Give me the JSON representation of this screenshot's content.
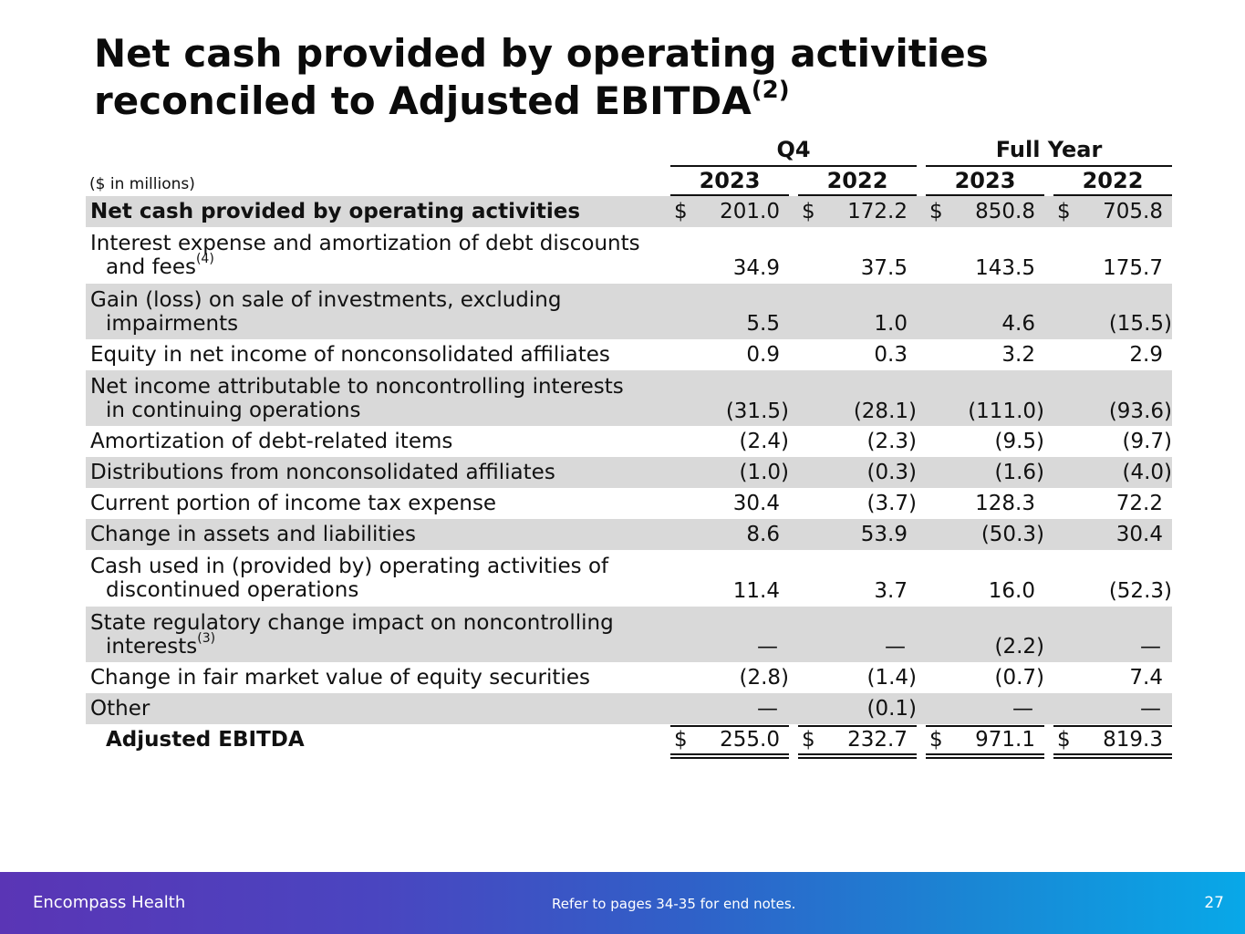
{
  "title": {
    "text": "Net cash provided by operating activities reconciled to Adjusted EBITDA",
    "sup": "(2)"
  },
  "headers": {
    "units": "($ in millions)",
    "q4": "Q4",
    "full_year": "Full Year",
    "years": [
      "2023",
      "2022",
      "2023",
      "2022"
    ]
  },
  "rows": [
    {
      "label": "Net cash provided by operating activities",
      "values": [
        "201.0",
        "172.2",
        "850.8",
        "705.8"
      ],
      "currency": true
    },
    {
      "label": "Interest expense and amortization of debt discounts",
      "label2": "and fees",
      "sup": "(4)",
      "values": [
        "34.9",
        "37.5",
        "143.5",
        "175.7"
      ]
    },
    {
      "label": "Gain (loss) on sale of investments, excluding",
      "label2": "impairments",
      "values": [
        "5.5",
        "1.0",
        "4.6",
        "(15.5)"
      ]
    },
    {
      "label": "Equity in net income of nonconsolidated affiliates",
      "values": [
        "0.9",
        "0.3",
        "3.2",
        "2.9"
      ]
    },
    {
      "label": "Net income attributable to noncontrolling interests",
      "label2": "in continuing operations",
      "values": [
        "(31.5)",
        "(28.1)",
        "(111.0)",
        "(93.6)"
      ]
    },
    {
      "label": "Amortization of debt-related items",
      "values": [
        "(2.4)",
        "(2.3)",
        "(9.5)",
        "(9.7)"
      ]
    },
    {
      "label": "Distributions from nonconsolidated affiliates",
      "values": [
        "(1.0)",
        "(0.3)",
        "(1.6)",
        "(4.0)"
      ]
    },
    {
      "label": "Current portion of income tax expense",
      "values": [
        "30.4",
        "(3.7)",
        "128.3",
        "72.2"
      ]
    },
    {
      "label": "Change in assets and liabilities",
      "values": [
        "8.6",
        "53.9",
        "(50.3)",
        "30.4"
      ]
    },
    {
      "label": "Cash used in (provided by) operating activities of",
      "label2": "discontinued operations",
      "values": [
        "11.4",
        "3.7",
        "16.0",
        "(52.3)"
      ]
    },
    {
      "label": "State regulatory change impact on noncontrolling",
      "label2": "interests",
      "sup": "(3)",
      "values": [
        "—",
        "—",
        "(2.2)",
        "—"
      ]
    },
    {
      "label": "Change in fair market value of equity securities",
      "values": [
        "(2.8)",
        "(1.4)",
        "(0.7)",
        "7.4"
      ]
    },
    {
      "label": "Other",
      "values": [
        "—",
        "(0.1)",
        "—",
        "—"
      ]
    },
    {
      "label": "Adjusted EBITDA",
      "values": [
        "255.0",
        "232.7",
        "971.1",
        "819.3"
      ],
      "currency": true
    }
  ],
  "currency_symbol": "$",
  "footer": {
    "company": "Encompass Health",
    "note": "Refer to pages 34-35 for end notes.",
    "page": "27"
  }
}
